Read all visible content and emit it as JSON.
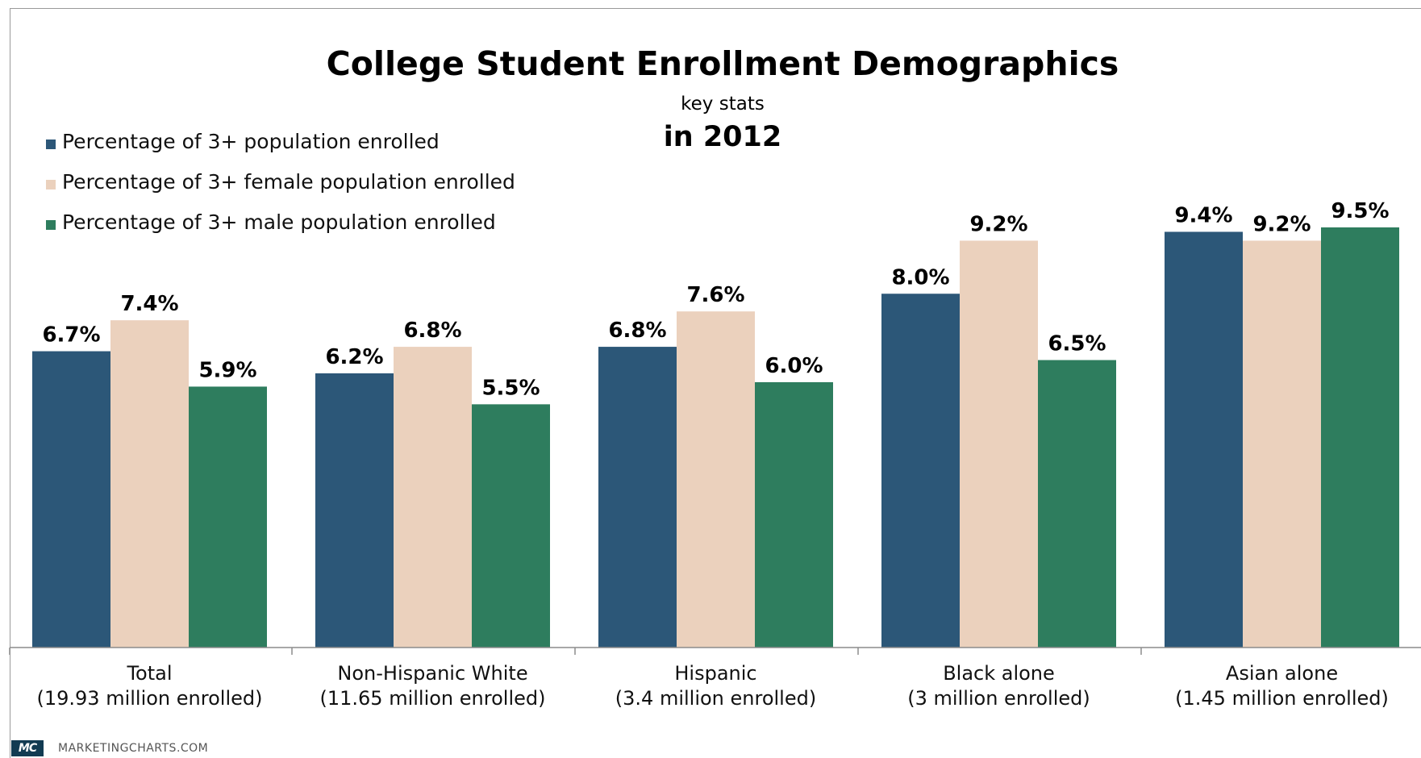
{
  "chart_data": {
    "type": "bar",
    "title": "College Student Enrollment Demographics",
    "subtitle": "key stats",
    "subtitle2": "in 2012",
    "categories": [
      [
        "Total",
        "(19.93 million enrolled)"
      ],
      [
        "Non-Hispanic White",
        "(11.65 million enrolled)"
      ],
      [
        "Hispanic",
        "(3.4 million enrolled)"
      ],
      [
        "Black alone",
        "(3 million enrolled)"
      ],
      [
        "Asian alone",
        "(1.45 million enrolled)"
      ]
    ],
    "series": [
      {
        "name": "Percentage of 3+ population enrolled",
        "color": "#2c5778",
        "values": [
          6.7,
          6.2,
          6.8,
          8.0,
          9.4
        ]
      },
      {
        "name": "Percentage of 3+ female population enrolled",
        "color": "#ebd1bd",
        "values": [
          7.4,
          6.8,
          7.6,
          9.2,
          9.2
        ]
      },
      {
        "name": "Percentage of 3+ male population enrolled",
        "color": "#2e7d5e",
        "values": [
          5.9,
          5.5,
          6.0,
          6.5,
          9.5
        ]
      }
    ],
    "ylim": [
      0,
      9.5
    ],
    "value_suffix": "%",
    "grid": false,
    "legend_position": "top-left"
  },
  "footer": {
    "logo_text": "MC",
    "site": "MARKETINGCHARTS.COM"
  }
}
